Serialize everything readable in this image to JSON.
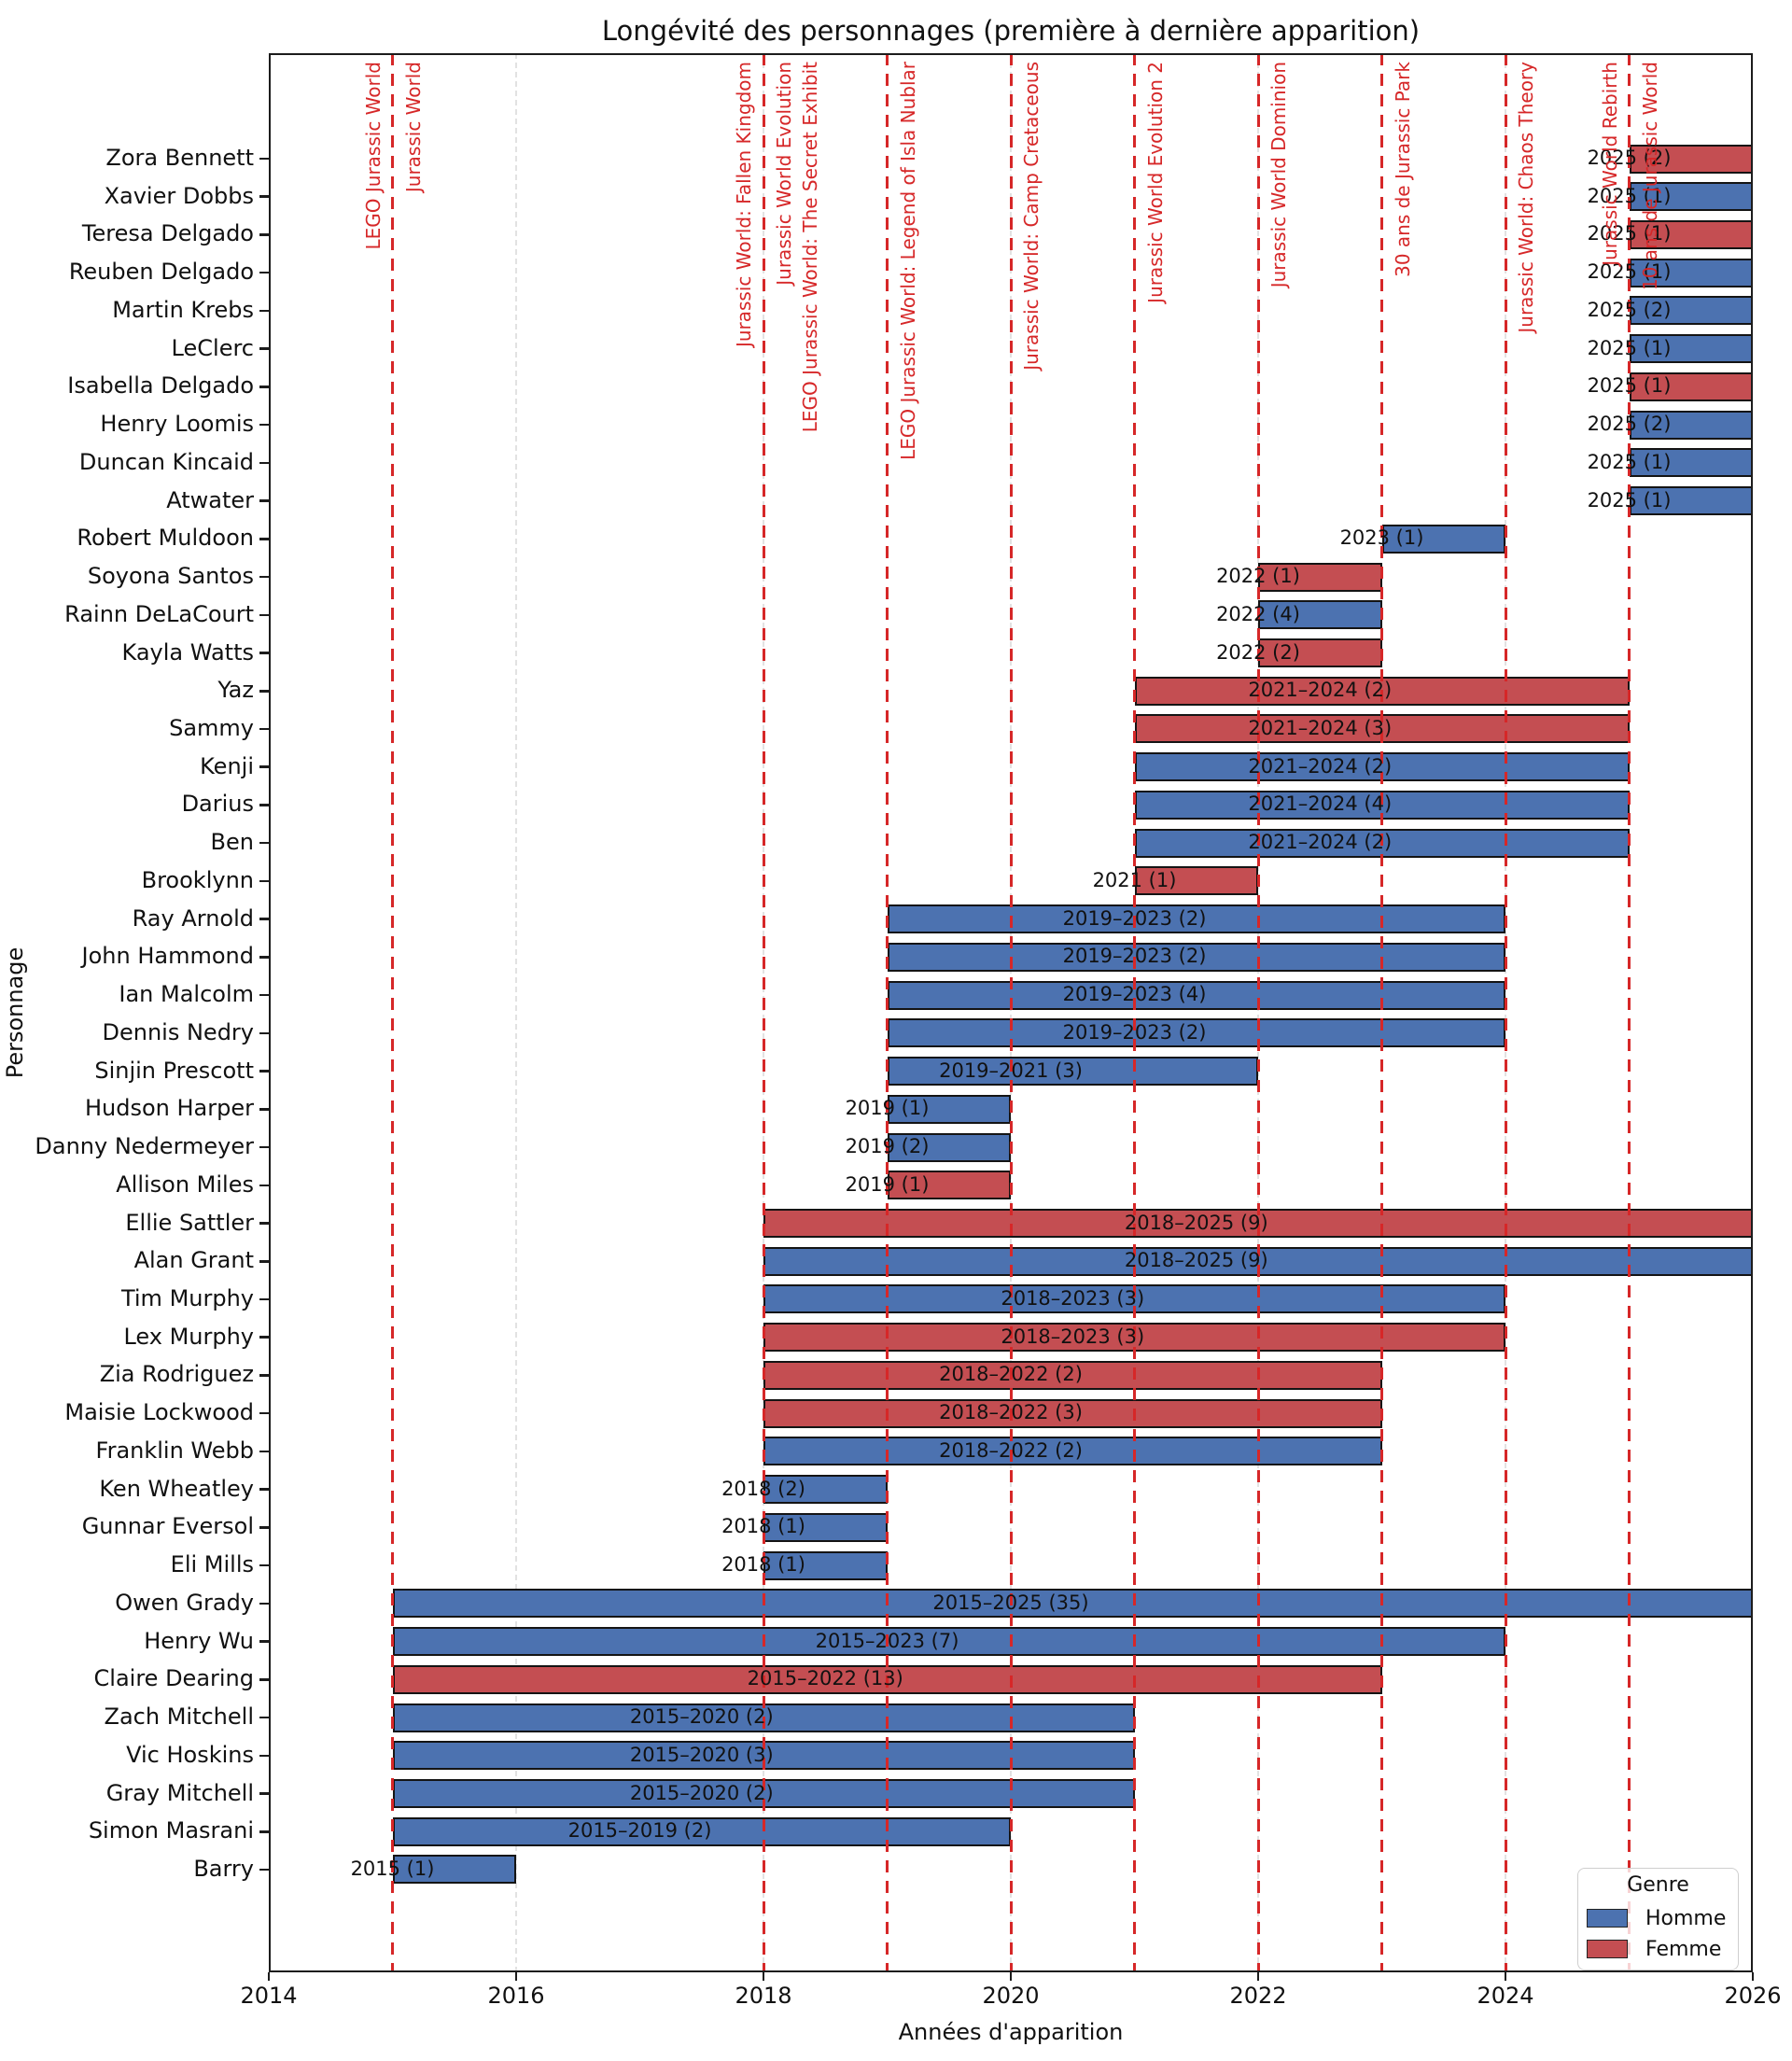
{
  "chart_data": {
    "type": "bar",
    "orientation": "horizontal-gantt",
    "title": "Longévité des personnages (première à dernière apparition)",
    "xlabel": "Années d'apparition",
    "ylabel": "Personnage",
    "xlim": [
      2014,
      2026
    ],
    "xticks": [
      2014,
      2016,
      2018,
      2020,
      2022,
      2024,
      2026
    ],
    "grid_years": [
      2016,
      2018,
      2020,
      2022,
      2024
    ],
    "legend": {
      "title": "Genre",
      "position": "lower right",
      "entries": [
        {
          "label": "Homme",
          "color": "#4C72B0"
        },
        {
          "label": "Femme",
          "color": "#C44E52"
        }
      ]
    },
    "colors": {
      "homme": "#4C72B0",
      "femme": "#C44E52",
      "event_line": "#d62728",
      "grid": "#e2e2e2"
    },
    "events": [
      {
        "year": 2015,
        "label": "LEGO Jurassic World",
        "side": "left"
      },
      {
        "year": 2015,
        "label": "Jurassic World",
        "side": "right"
      },
      {
        "year": 2018,
        "label": "Jurassic World: Fallen Kingdom",
        "side": "left"
      },
      {
        "year": 2018,
        "label": "Jurassic World Evolution",
        "side": "right"
      },
      {
        "year": 2018,
        "label": "LEGO Jurassic World: The Secret Exhibit",
        "side": "right2"
      },
      {
        "year": 2019,
        "label": "LEGO Jurassic World: Legend of Isla Nublar",
        "side": "right"
      },
      {
        "year": 2020,
        "label": "Jurassic World: Camp Cretaceous",
        "side": "right"
      },
      {
        "year": 2021,
        "label": "Jurassic World Evolution 2",
        "side": "right"
      },
      {
        "year": 2022,
        "label": "Jurassic World Dominion",
        "side": "right"
      },
      {
        "year": 2023,
        "label": "30 ans de Jurassic Park",
        "side": "right"
      },
      {
        "year": 2024,
        "label": "Jurassic World: Chaos Theory",
        "side": "right"
      },
      {
        "year": 2025,
        "label": "Jurassic World Rebirth",
        "side": "left"
      },
      {
        "year": 2025,
        "label": "10 ans de Jurassic World",
        "side": "right"
      }
    ],
    "characters": [
      {
        "name": "Zora Bennett",
        "first": 2025,
        "last": 2025,
        "count": 2,
        "gender": "femme",
        "label": "2025 (2)"
      },
      {
        "name": "Xavier Dobbs",
        "first": 2025,
        "last": 2025,
        "count": 1,
        "gender": "homme",
        "label": "2025 (1)"
      },
      {
        "name": "Teresa Delgado",
        "first": 2025,
        "last": 2025,
        "count": 1,
        "gender": "femme",
        "label": "2025 (1)"
      },
      {
        "name": "Reuben Delgado",
        "first": 2025,
        "last": 2025,
        "count": 1,
        "gender": "homme",
        "label": "2025 (1)"
      },
      {
        "name": "Martin Krebs",
        "first": 2025,
        "last": 2025,
        "count": 2,
        "gender": "homme",
        "label": "2025 (2)"
      },
      {
        "name": "LeClerc",
        "first": 2025,
        "last": 2025,
        "count": 1,
        "gender": "homme",
        "label": "2025 (1)"
      },
      {
        "name": "Isabella Delgado",
        "first": 2025,
        "last": 2025,
        "count": 1,
        "gender": "femme",
        "label": "2025 (1)"
      },
      {
        "name": "Henry Loomis",
        "first": 2025,
        "last": 2025,
        "count": 2,
        "gender": "homme",
        "label": "2025 (2)"
      },
      {
        "name": "Duncan Kincaid",
        "first": 2025,
        "last": 2025,
        "count": 1,
        "gender": "homme",
        "label": "2025 (1)"
      },
      {
        "name": "Atwater",
        "first": 2025,
        "last": 2025,
        "count": 1,
        "gender": "homme",
        "label": "2025 (1)"
      },
      {
        "name": "Robert Muldoon",
        "first": 2023,
        "last": 2023,
        "count": 1,
        "gender": "homme",
        "label": "2023 (1)"
      },
      {
        "name": "Soyona Santos",
        "first": 2022,
        "last": 2022,
        "count": 1,
        "gender": "femme",
        "label": "2022 (1)"
      },
      {
        "name": "Rainn DeLaCourt",
        "first": 2022,
        "last": 2022,
        "count": 4,
        "gender": "homme",
        "label": "2022 (4)"
      },
      {
        "name": "Kayla Watts",
        "first": 2022,
        "last": 2022,
        "count": 2,
        "gender": "femme",
        "label": "2022 (2)"
      },
      {
        "name": "Yaz",
        "first": 2021,
        "last": 2024,
        "count": 2,
        "gender": "femme",
        "label": "2021–2024 (2)"
      },
      {
        "name": "Sammy",
        "first": 2021,
        "last": 2024,
        "count": 3,
        "gender": "femme",
        "label": "2021–2024 (3)"
      },
      {
        "name": "Kenji",
        "first": 2021,
        "last": 2024,
        "count": 2,
        "gender": "homme",
        "label": "2021–2024 (2)"
      },
      {
        "name": "Darius",
        "first": 2021,
        "last": 2024,
        "count": 4,
        "gender": "homme",
        "label": "2021–2024 (4)"
      },
      {
        "name": "Ben",
        "first": 2021,
        "last": 2024,
        "count": 2,
        "gender": "homme",
        "label": "2021–2024 (2)"
      },
      {
        "name": "Brooklynn",
        "first": 2021,
        "last": 2021,
        "count": 1,
        "gender": "femme",
        "label": "2021 (1)"
      },
      {
        "name": "Ray Arnold",
        "first": 2019,
        "last": 2023,
        "count": 2,
        "gender": "homme",
        "label": "2019–2023 (2)"
      },
      {
        "name": "John Hammond",
        "first": 2019,
        "last": 2023,
        "count": 2,
        "gender": "homme",
        "label": "2019–2023 (2)"
      },
      {
        "name": "Ian Malcolm",
        "first": 2019,
        "last": 2023,
        "count": 4,
        "gender": "homme",
        "label": "2019–2023 (4)"
      },
      {
        "name": "Dennis Nedry",
        "first": 2019,
        "last": 2023,
        "count": 2,
        "gender": "homme",
        "label": "2019–2023 (2)"
      },
      {
        "name": "Sinjin Prescott",
        "first": 2019,
        "last": 2021,
        "count": 3,
        "gender": "homme",
        "label": "2019–2021 (3)"
      },
      {
        "name": "Hudson Harper",
        "first": 2019,
        "last": 2019,
        "count": 1,
        "gender": "homme",
        "label": "2019 (1)"
      },
      {
        "name": "Danny Nedermeyer",
        "first": 2019,
        "last": 2019,
        "count": 2,
        "gender": "homme",
        "label": "2019 (2)"
      },
      {
        "name": "Allison Miles",
        "first": 2019,
        "last": 2019,
        "count": 1,
        "gender": "femme",
        "label": "2019 (1)"
      },
      {
        "name": "Ellie Sattler",
        "first": 2018,
        "last": 2025,
        "count": 9,
        "gender": "femme",
        "label": "2018–2025 (9)"
      },
      {
        "name": "Alan Grant",
        "first": 2018,
        "last": 2025,
        "count": 9,
        "gender": "homme",
        "label": "2018–2025 (9)"
      },
      {
        "name": "Tim Murphy",
        "first": 2018,
        "last": 2023,
        "count": 3,
        "gender": "homme",
        "label": "2018–2023 (3)"
      },
      {
        "name": "Lex Murphy",
        "first": 2018,
        "last": 2023,
        "count": 3,
        "gender": "femme",
        "label": "2018–2023 (3)"
      },
      {
        "name": "Zia Rodriguez",
        "first": 2018,
        "last": 2022,
        "count": 2,
        "gender": "femme",
        "label": "2018–2022 (2)"
      },
      {
        "name": "Maisie Lockwood",
        "first": 2018,
        "last": 2022,
        "count": 3,
        "gender": "femme",
        "label": "2018–2022 (3)"
      },
      {
        "name": "Franklin Webb",
        "first": 2018,
        "last": 2022,
        "count": 2,
        "gender": "homme",
        "label": "2018–2022 (2)"
      },
      {
        "name": "Ken Wheatley",
        "first": 2018,
        "last": 2018,
        "count": 2,
        "gender": "homme",
        "label": "2018 (2)"
      },
      {
        "name": "Gunnar Eversol",
        "first": 2018,
        "last": 2018,
        "count": 1,
        "gender": "homme",
        "label": "2018 (1)"
      },
      {
        "name": "Eli Mills",
        "first": 2018,
        "last": 2018,
        "count": 1,
        "gender": "homme",
        "label": "2018 (1)"
      },
      {
        "name": "Owen Grady",
        "first": 2015,
        "last": 2025,
        "count": 35,
        "gender": "homme",
        "label": "2015–2025 (35)"
      },
      {
        "name": "Henry Wu",
        "first": 2015,
        "last": 2023,
        "count": 7,
        "gender": "homme",
        "label": "2015–2023 (7)"
      },
      {
        "name": "Claire Dearing",
        "first": 2015,
        "last": 2022,
        "count": 13,
        "gender": "femme",
        "label": "2015–2022 (13)"
      },
      {
        "name": "Zach Mitchell",
        "first": 2015,
        "last": 2020,
        "count": 2,
        "gender": "homme",
        "label": "2015–2020 (2)"
      },
      {
        "name": "Vic Hoskins",
        "first": 2015,
        "last": 2020,
        "count": 3,
        "gender": "homme",
        "label": "2015–2020 (3)"
      },
      {
        "name": "Gray Mitchell",
        "first": 2015,
        "last": 2020,
        "count": 2,
        "gender": "homme",
        "label": "2015–2020 (2)"
      },
      {
        "name": "Simon Masrani",
        "first": 2015,
        "last": 2019,
        "count": 2,
        "gender": "homme",
        "label": "2015–2019 (2)"
      },
      {
        "name": "Barry",
        "first": 2015,
        "last": 2015,
        "count": 1,
        "gender": "homme",
        "label": "2015 (1)"
      }
    ]
  }
}
